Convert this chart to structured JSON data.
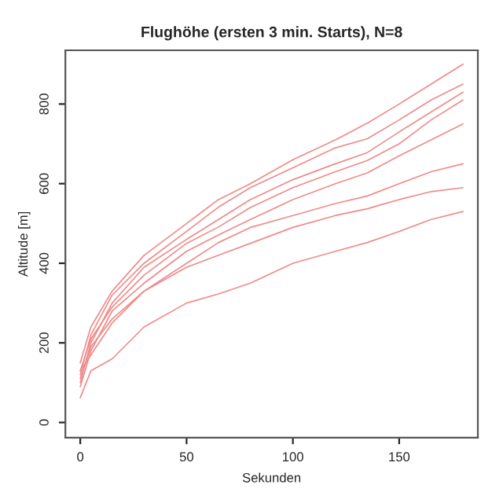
{
  "chart_data": {
    "type": "line",
    "title": "Flughöhe (ersten 3 min. Starts), N=8",
    "xlabel": "Sekunden",
    "ylabel": "Altitude [m]",
    "x": [
      0,
      5,
      15,
      30,
      50,
      65,
      80,
      100,
      120,
      135,
      150,
      165,
      180
    ],
    "series": [
      {
        "color": "#f08a8a",
        "values": [
          150,
          240,
          330,
          420,
          500,
          560,
          600,
          660,
          710,
          752,
          800,
          850,
          900
        ]
      },
      {
        "color": "#f08a8a",
        "values": [
          120,
          220,
          320,
          400,
          480,
          541,
          590,
          640,
          690,
          713,
          760,
          810,
          850
        ]
      },
      {
        "color": "#f08a8a",
        "values": [
          100,
          200,
          300,
          390,
          460,
          510,
          560,
          610,
          650,
          678,
          730,
          780,
          830
        ]
      },
      {
        "color": "#f08a8a",
        "values": [
          130,
          210,
          290,
          370,
          450,
          491,
          540,
          590,
          630,
          658,
          700,
          760,
          810
        ]
      },
      {
        "color": "#f08a8a",
        "values": [
          90,
          180,
          280,
          350,
          430,
          471,
          510,
          560,
          600,
          627,
          670,
          710,
          750
        ]
      },
      {
        "color": "#f08a8a",
        "values": [
          110,
          190,
          260,
          330,
          400,
          452,
          490,
          520,
          550,
          569,
          600,
          630,
          650
        ]
      },
      {
        "color": "#f08a8a",
        "values": [
          130,
          170,
          250,
          330,
          390,
          420,
          450,
          490,
          520,
          537,
          560,
          580,
          590
        ]
      },
      {
        "color": "#f08a8a",
        "values": [
          62,
          130,
          160,
          240,
          300,
          323,
          350,
          400,
          430,
          452,
          480,
          510,
          530
        ]
      }
    ],
    "xlim": [
      -7,
      187
    ],
    "ylim": [
      -38,
      935
    ],
    "xticks": [
      0,
      50,
      100,
      150
    ],
    "yticks": [
      0,
      200,
      400,
      600,
      800
    ],
    "grid": false,
    "marker": "none",
    "line_style": "solid"
  }
}
